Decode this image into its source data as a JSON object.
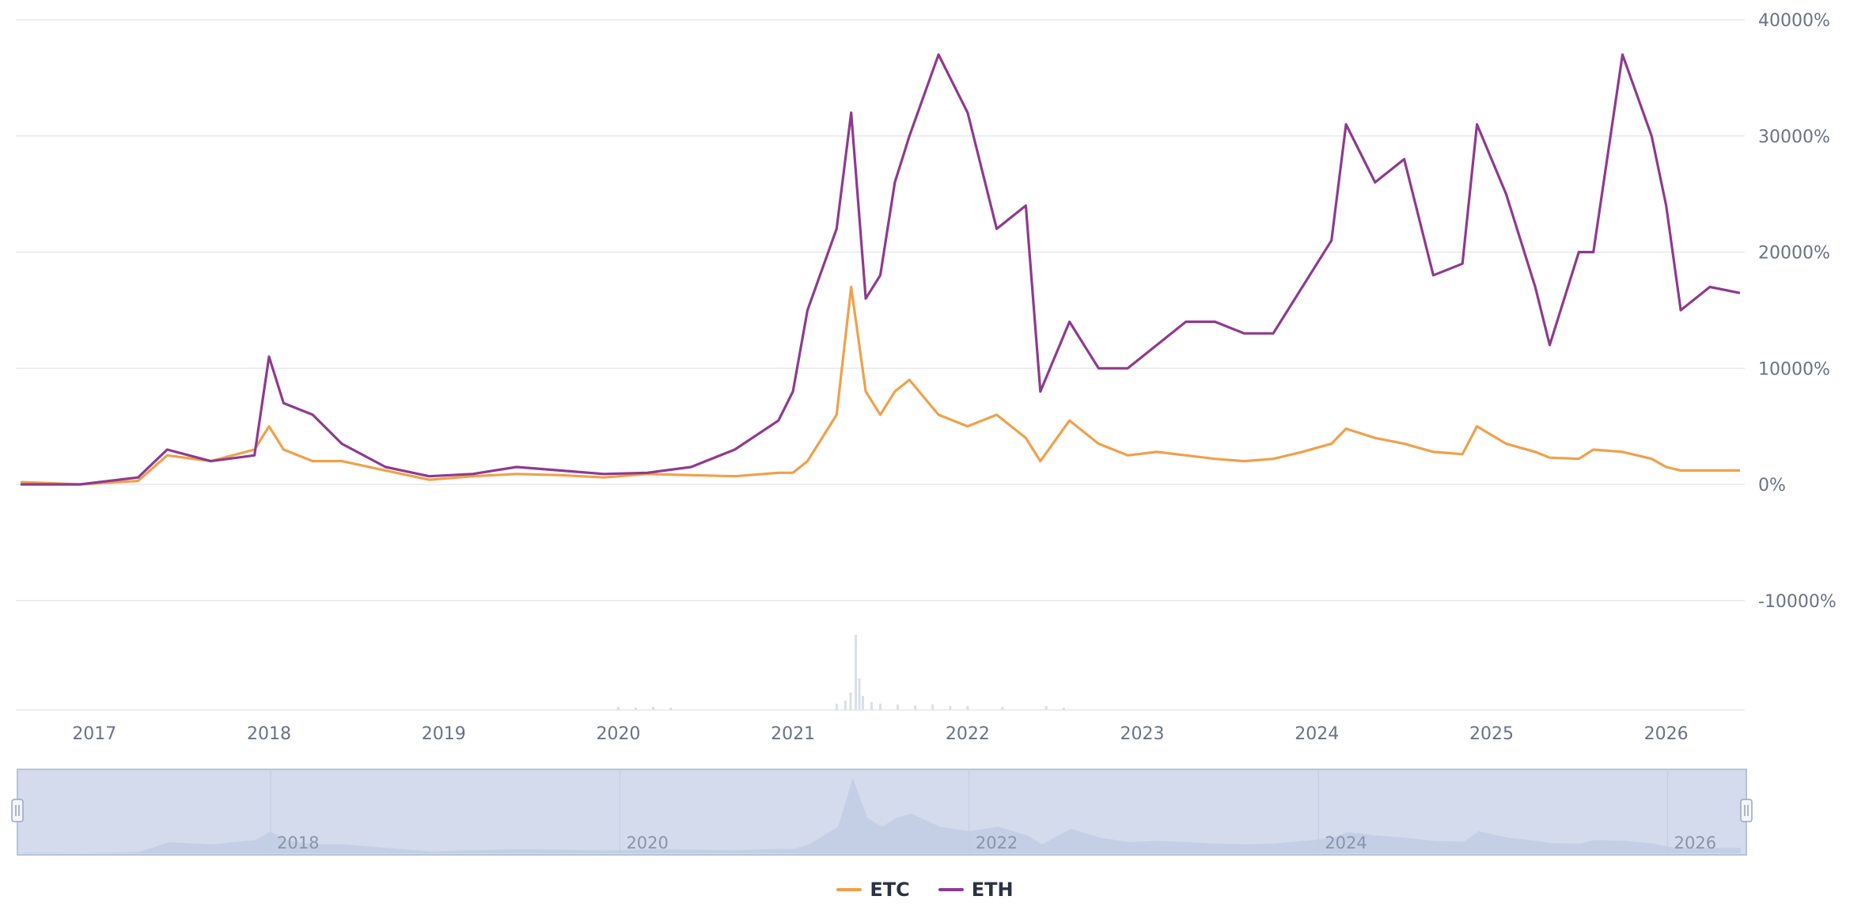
{
  "chart_data": {
    "type": "line",
    "title": "",
    "xlabel": "",
    "ylabel": "",
    "ylim": [
      -10000,
      40000
    ],
    "y_tick_labels": [
      "40000%",
      "30000%",
      "20000%",
      "10000%",
      "0%",
      "-10000%"
    ],
    "x_tick_labels": [
      "2017",
      "2018",
      "2019",
      "2020",
      "2021",
      "2022",
      "2023",
      "2024",
      "2025",
      "2026"
    ],
    "navigator_tick_labels": [
      "2018",
      "2020",
      "2022",
      "2024",
      "2026"
    ],
    "grid": true,
    "legend_position": "bottom-center",
    "colors": {
      "ETC": "#f0a04b",
      "ETH": "#8e3a8e",
      "volume": "#d9dfe9",
      "navigator_bg": "#d3dbed",
      "navigator_area": "#c4cfe5"
    },
    "x": [
      "2016-08",
      "2016-12",
      "2017-04",
      "2017-06",
      "2017-09",
      "2017-12",
      "2018-01",
      "2018-02",
      "2018-04",
      "2018-06",
      "2018-09",
      "2018-12",
      "2019-03",
      "2019-06",
      "2019-09",
      "2019-12",
      "2020-03",
      "2020-06",
      "2020-09",
      "2020-12",
      "2021-01",
      "2021-02",
      "2021-04",
      "2021-05",
      "2021-06",
      "2021-07",
      "2021-08",
      "2021-09",
      "2021-11",
      "2022-01",
      "2022-03",
      "2022-05",
      "2022-06",
      "2022-08",
      "2022-10",
      "2022-12",
      "2023-02",
      "2023-04",
      "2023-06",
      "2023-08",
      "2023-10",
      "2023-12",
      "2024-02",
      "2024-03",
      "2024-05",
      "2024-07",
      "2024-09",
      "2024-11",
      "2024-12",
      "2025-02",
      "2025-04",
      "2025-05",
      "2025-07",
      "2025-08",
      "2025-10",
      "2025-12",
      "2026-01",
      "2026-02",
      "2026-04",
      "2026-06"
    ],
    "series": [
      {
        "name": "ETC",
        "values": [
          200,
          0,
          300,
          2500,
          2000,
          3000,
          5000,
          3000,
          2000,
          2000,
          1200,
          400,
          700,
          900,
          800,
          600,
          900,
          800,
          700,
          1000,
          1000,
          2000,
          6000,
          17000,
          8000,
          6000,
          8000,
          9000,
          6000,
          5000,
          6000,
          4000,
          2000,
          5500,
          3500,
          2500,
          2800,
          2500,
          2200,
          2000,
          2200,
          2800,
          3500,
          4800,
          4000,
          3500,
          2800,
          2600,
          5000,
          3500,
          2800,
          2300,
          2200,
          3000,
          2800,
          2200,
          1500,
          1200,
          1200,
          1200
        ]
      },
      {
        "name": "ETH",
        "values": [
          0,
          0,
          600,
          3000,
          2000,
          2500,
          11000,
          7000,
          6000,
          3500,
          1500,
          700,
          900,
          1500,
          1200,
          900,
          1000,
          1500,
          3000,
          5500,
          8000,
          15000,
          22000,
          32000,
          16000,
          18000,
          26000,
          30000,
          37000,
          32000,
          22000,
          24000,
          8000,
          14000,
          10000,
          10000,
          12000,
          14000,
          14000,
          13000,
          13000,
          17000,
          21000,
          31000,
          26000,
          28000,
          18000,
          19000,
          31000,
          25000,
          17000,
          12000,
          20000,
          20000,
          37000,
          30000,
          24000,
          15000,
          17000,
          16500
        ]
      }
    ]
  },
  "legend": {
    "items": [
      {
        "label": "ETC",
        "color": "#f0a04b"
      },
      {
        "label": "ETH",
        "color": "#8e3a8e"
      }
    ]
  }
}
